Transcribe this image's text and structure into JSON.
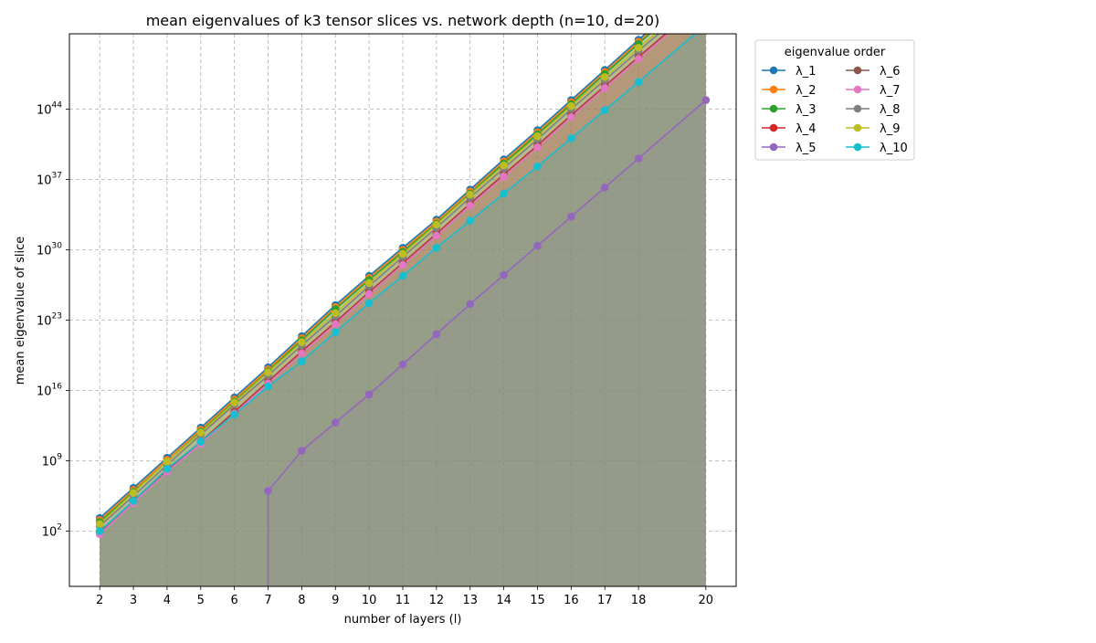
{
  "chart_data": {
    "type": "line",
    "title": "mean eigenvalues of k3 tensor slices vs. network depth (n=10, d=20)",
    "xlabel": "number of layers (l)",
    "ylabel": "mean eigenvalue of slice",
    "y_scale": "log10",
    "ylim_exponent": [
      -3.5,
      51.5
    ],
    "grid": true,
    "area_fill": true,
    "legend": {
      "title": "eigenvalue order",
      "placement": "outside-right",
      "columns": 2
    },
    "x_ticks": [
      2,
      3,
      4,
      5,
      6,
      7,
      8,
      9,
      10,
      11,
      12,
      13,
      14,
      15,
      16,
      17,
      18,
      20
    ],
    "y_tick_exponents": [
      2,
      9,
      16,
      23,
      30,
      37,
      44
    ],
    "y_tick_base": "10",
    "x": [
      2,
      3,
      4,
      5,
      6,
      7,
      8,
      9,
      10,
      11,
      12,
      13,
      14,
      15,
      16,
      17,
      18,
      20
    ],
    "series": [
      {
        "name": "λ_1",
        "color": "#1f77b4",
        "log10_values": [
          3.3,
          6.3,
          9.3,
          12.3,
          15.3,
          18.3,
          21.4,
          24.5,
          27.4,
          30.2,
          33.0,
          36.0,
          39.0,
          41.9,
          44.9,
          47.9,
          50.9,
          56.9
        ]
      },
      {
        "name": "λ_2",
        "color": "#ff7f0e",
        "log10_values": [
          3.1,
          6.1,
          9.1,
          12.1,
          15.1,
          18.1,
          21.2,
          24.3,
          27.2,
          30.0,
          32.8,
          35.8,
          38.8,
          41.7,
          44.7,
          47.7,
          50.7,
          56.7
        ]
      },
      {
        "name": "λ_3",
        "color": "#2ca02c",
        "log10_values": [
          2.9,
          5.9,
          8.9,
          11.9,
          14.9,
          17.9,
          21.0,
          24.1,
          27.0,
          29.8,
          32.6,
          35.6,
          38.6,
          41.5,
          44.5,
          47.5,
          50.5,
          56.5
        ]
      },
      {
        "name": "λ_4",
        "color": "#d62728",
        "log10_values": [
          1.9,
          5.0,
          8.1,
          10.9,
          13.9,
          16.9,
          19.9,
          22.8,
          25.8,
          28.7,
          31.6,
          34.6,
          37.5,
          40.4,
          43.4,
          46.3,
          49.2,
          54.9
        ]
      },
      {
        "name": "λ_5",
        "color": "#9467bd",
        "log10_values": [
          null,
          null,
          null,
          null,
          null,
          6.0,
          10.0,
          12.8,
          15.6,
          18.6,
          21.6,
          24.6,
          27.5,
          30.4,
          33.3,
          36.2,
          39.1,
          44.9
        ]
      },
      {
        "name": "λ_6",
        "color": "#8c564b",
        "log10_values": [
          1.8,
          4.9,
          8.0,
          10.8,
          13.8,
          16.8,
          19.8,
          22.7,
          25.7,
          28.6,
          31.5,
          34.5,
          37.4,
          40.3,
          43.3,
          46.2,
          49.1,
          54.8
        ]
      },
      {
        "name": "λ_7",
        "color": "#e377c2",
        "log10_values": [
          1.7,
          4.8,
          7.9,
          10.7,
          13.7,
          16.7,
          19.7,
          22.6,
          25.6,
          28.5,
          31.4,
          34.4,
          37.3,
          40.2,
          43.2,
          46.1,
          49.0,
          54.7
        ]
      },
      {
        "name": "λ_8",
        "color": "#7f7f7f",
        "log10_values": [
          2.5,
          5.5,
          8.6,
          11.6,
          14.6,
          17.5,
          20.5,
          23.4,
          26.4,
          29.3,
          32.2,
          35.2,
          38.1,
          41.0,
          44.0,
          46.9,
          49.8,
          55.5
        ]
      },
      {
        "name": "λ_9",
        "color": "#bcbd22",
        "log10_values": [
          2.7,
          5.8,
          8.9,
          11.8,
          14.8,
          17.8,
          20.8,
          23.7,
          26.7,
          29.6,
          32.5,
          35.5,
          38.4,
          41.3,
          44.3,
          47.2,
          50.1,
          55.8
        ]
      },
      {
        "name": "λ_10",
        "color": "#17becf",
        "log10_values": [
          2.0,
          5.0,
          8.2,
          10.9,
          13.6,
          16.4,
          18.9,
          21.8,
          24.7,
          27.4,
          30.2,
          32.9,
          35.6,
          38.3,
          41.1,
          43.9,
          46.7,
          52.4
        ]
      }
    ]
  }
}
